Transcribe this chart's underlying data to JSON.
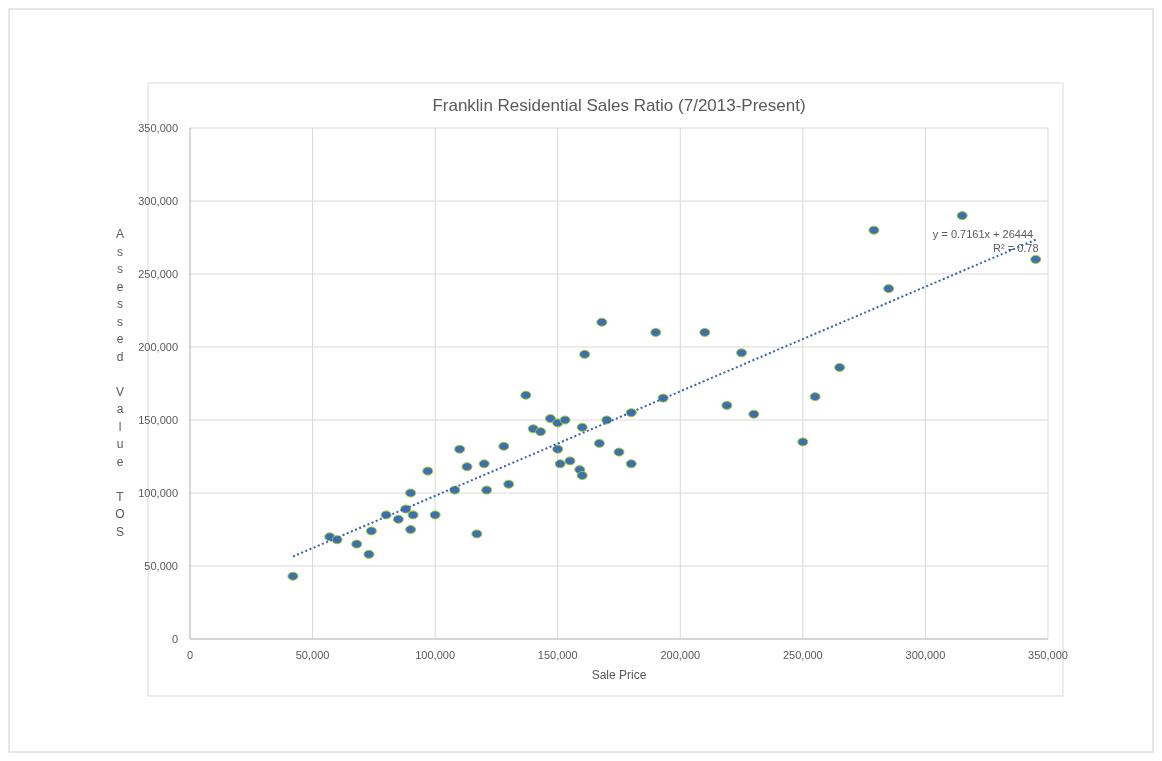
{
  "chart_data": {
    "type": "scatter",
    "title": "Franklin Residential Sales Ratio (7/2013-Present)",
    "xlabel": "Sale Price",
    "ylabel": "Assessed Value TOS",
    "xlim": [
      0,
      350000
    ],
    "xticks": [
      {
        "value": 0,
        "label": "0"
      },
      {
        "value": 50000,
        "label": "50,000"
      },
      {
        "value": 100000,
        "label": "100,000"
      },
      {
        "value": 150000,
        "label": "150,000"
      },
      {
        "value": 200000,
        "label": "200,000"
      },
      {
        "value": 250000,
        "label": "250,000"
      },
      {
        "value": 300000,
        "label": "300,000"
      },
      {
        "value": 350000,
        "label": "350,000"
      }
    ],
    "ylim": [
      0,
      350000
    ],
    "yticks": [
      {
        "value": 0,
        "label": "0"
      },
      {
        "value": 50000,
        "label": "50,000"
      },
      {
        "value": 100000,
        "label": "100,000"
      },
      {
        "value": 150000,
        "label": "150,000"
      },
      {
        "value": 200000,
        "label": "200,000"
      },
      {
        "value": 250000,
        "label": "250,000"
      },
      {
        "value": 300000,
        "label": "300,000"
      },
      {
        "value": 350000,
        "label": "350,000"
      }
    ],
    "grid": true,
    "marker": "circle",
    "annotations": [
      "y = 0.7161x + 26444",
      "R² = 0.78"
    ],
    "series": [
      {
        "color": "#3f6fae",
        "x": [
          42000,
          57000,
          60000,
          68000,
          73000,
          74000,
          80000,
          85000,
          88000,
          90000,
          90000,
          91000,
          97000,
          100000,
          108000,
          110000,
          113000,
          117000,
          120000,
          121000,
          128000,
          130000,
          137000,
          140000,
          143000,
          147000,
          150000,
          150000,
          151000,
          153000,
          155000,
          159000,
          160000,
          160000,
          161000,
          167000,
          168000,
          170000,
          175000,
          180000,
          180000,
          190000,
          193000,
          210000,
          219000,
          225000,
          230000,
          250000,
          255000,
          265000,
          279000,
          285000,
          315000,
          345000
        ],
        "values": [
          43000,
          70000,
          68000,
          65000,
          58000,
          74000,
          85000,
          82000,
          89000,
          75000,
          100000,
          85000,
          115000,
          85000,
          102000,
          130000,
          118000,
          72000,
          120000,
          102000,
          132000,
          106000,
          167000,
          144000,
          142000,
          151000,
          148000,
          130000,
          120000,
          150000,
          122000,
          116000,
          112000,
          145000,
          195000,
          134000,
          217000,
          150000,
          128000,
          155000,
          120000,
          210000,
          165000,
          210000,
          160000,
          196000,
          154000,
          135000,
          166000,
          186000,
          280000,
          240000,
          290000,
          260000
        ]
      },
      {
        "type": "line",
        "color": "#3a5fb5",
        "line_style": "dotted",
        "marker": "none",
        "x": [
          42000,
          345000
        ],
        "values": [
          56500,
          273500
        ]
      }
    ]
  }
}
